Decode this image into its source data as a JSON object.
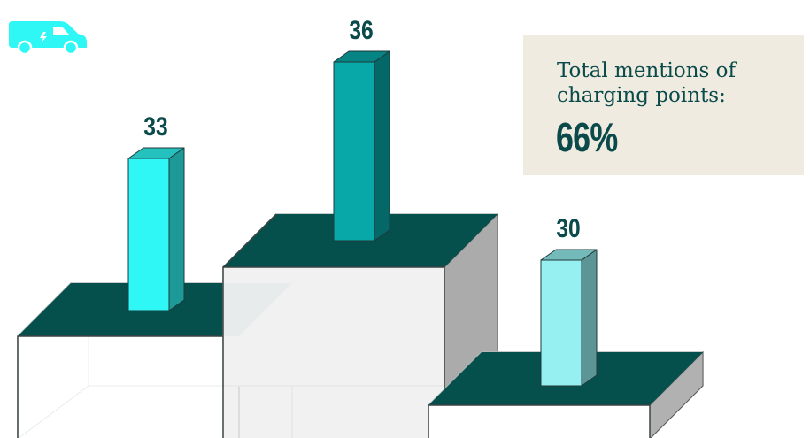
{
  "chart_data": {
    "type": "bar",
    "categories": [
      "",
      "",
      ""
    ],
    "values": [
      33,
      36,
      30
    ],
    "colors": [
      "#2ef7f5",
      "#08a8a8",
      "#96eff0"
    ],
    "title": "",
    "xlabel": "",
    "ylabel": ""
  },
  "info": {
    "label": "Total mentions of charging points:",
    "value": "66%"
  },
  "icons": {
    "van": "van-icon"
  },
  "palette": {
    "platform_top": "#05504d",
    "text": "#0a4a4a",
    "box_bg": "#efebe0",
    "van": "#2ef7f5"
  }
}
